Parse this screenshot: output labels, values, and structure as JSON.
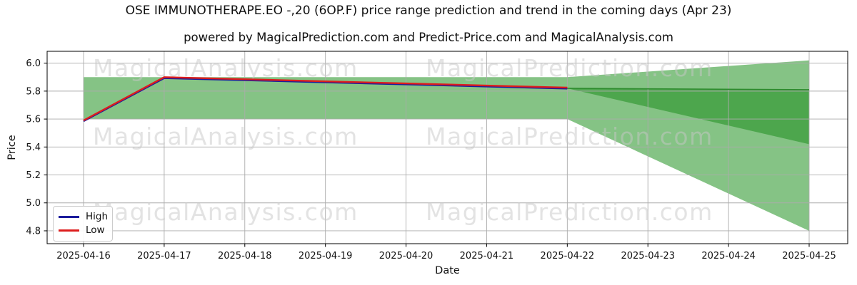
{
  "header": {
    "title": "OSE IMMUNOTHERAPE.EO -,20 (6OP.F) price range prediction and trend in the coming days (Apr 23)",
    "subtitle": "powered by MagicalPrediction.com and Predict-Price.com and MagicalAnalysis.com"
  },
  "axes": {
    "ylabel": "Price",
    "xlabel": "Date",
    "yticks": [
      4.8,
      5.0,
      5.2,
      5.4,
      5.6,
      5.8,
      6.0
    ],
    "xticks": [
      "2025-04-16",
      "2025-04-17",
      "2025-04-18",
      "2025-04-19",
      "2025-04-20",
      "2025-04-21",
      "2025-04-22",
      "2025-04-23",
      "2025-04-24",
      "2025-04-25"
    ],
    "grid": true
  },
  "legend": {
    "position": "lower-left",
    "items": [
      {
        "label": "High",
        "color": "#1c1c9c"
      },
      {
        "label": "Low",
        "color": "#dd1d1d"
      }
    ]
  },
  "watermarks": {
    "left_text": "MagicalAnalysis.com",
    "right_text": "MagicalPrediction.com",
    "color": "#c8c8c8",
    "opacity": 0.5
  },
  "chart_data": {
    "type": "line",
    "x": [
      "2025-04-16",
      "2025-04-17",
      "2025-04-18",
      "2025-04-19",
      "2025-04-20",
      "2025-04-21",
      "2025-04-22",
      "2025-04-23",
      "2025-04-24",
      "2025-04-25"
    ],
    "ylim": [
      4.708,
      6.085
    ],
    "series": [
      {
        "name": "High",
        "color": "#1c1c9c",
        "values": [
          5.585,
          5.893,
          5.878,
          5.863,
          5.848,
          5.833,
          5.818
        ]
      },
      {
        "name": "Low",
        "color": "#dd1d1d",
        "values": [
          5.59,
          5.9,
          5.885,
          5.87,
          5.855,
          5.84,
          5.825
        ]
      }
    ],
    "history_band": {
      "from": "2025-04-16",
      "to": "2025-04-22",
      "low": 5.6,
      "high": 5.9,
      "color": "#85c385"
    },
    "forecast_outer_band": {
      "from": "2025-04-22",
      "to": "2025-04-25",
      "start_low": 5.6,
      "start_high": 5.9,
      "end_low": 4.8,
      "end_high": 6.02,
      "color": "#85c385"
    },
    "forecast_inner_band": {
      "from": "2025-04-22",
      "to": "2025-04-25",
      "apex": 5.82,
      "end_low": 5.42,
      "end_high": 5.81,
      "color": "#4da64d",
      "edge_color": "#2e8b2e"
    },
    "grid_color": "#ababab",
    "spine_color": "#000000"
  }
}
